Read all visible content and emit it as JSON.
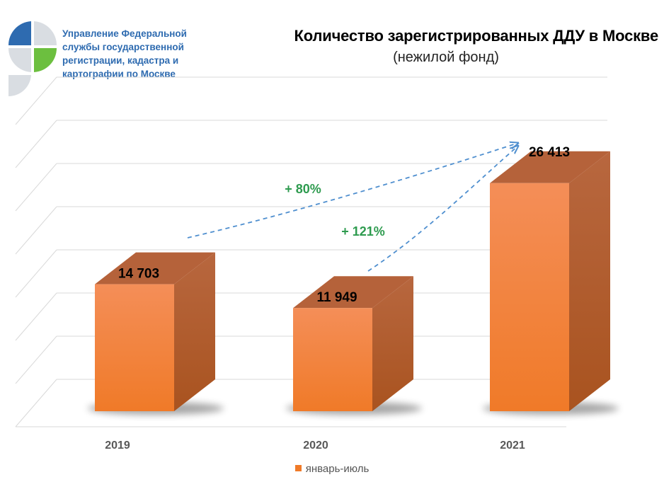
{
  "header": {
    "org_lines": [
      "Управление Федеральной",
      "службы государственной",
      "регистрации, кадастра и",
      "картографии по Москве"
    ],
    "title": "Количество зарегистрированных ДДУ в Москве",
    "subtitle": "(нежилой фонд)"
  },
  "colors": {
    "bar_front": "#f07a28",
    "bar_top": "#b5623a",
    "bar_side": "#a9531f",
    "growth_label": "#2e9b4f",
    "arrow": "#4f8fcf",
    "logo_blue": "#2e6bb0",
    "logo_green": "#6cbf3f",
    "logo_grey": "#d9dde2"
  },
  "chart_data": {
    "type": "bar",
    "title": "Количество зарегистрированных ДДУ в Москве",
    "subtitle": "(нежилой фонд)",
    "categories": [
      "2019",
      "2020",
      "2021"
    ],
    "series": [
      {
        "name": "январь-июль",
        "values": [
          14703,
          11949,
          26413
        ],
        "value_labels": [
          "14 703",
          "11 949",
          "26 413"
        ]
      }
    ],
    "ylim": [
      0,
      35000
    ],
    "grid": true,
    "legend": "bottom",
    "annotations": [
      {
        "text": "+ 80%",
        "from": "2019",
        "to": "2021"
      },
      {
        "text": "+ 121%",
        "from": "2020",
        "to": "2021"
      }
    ]
  }
}
